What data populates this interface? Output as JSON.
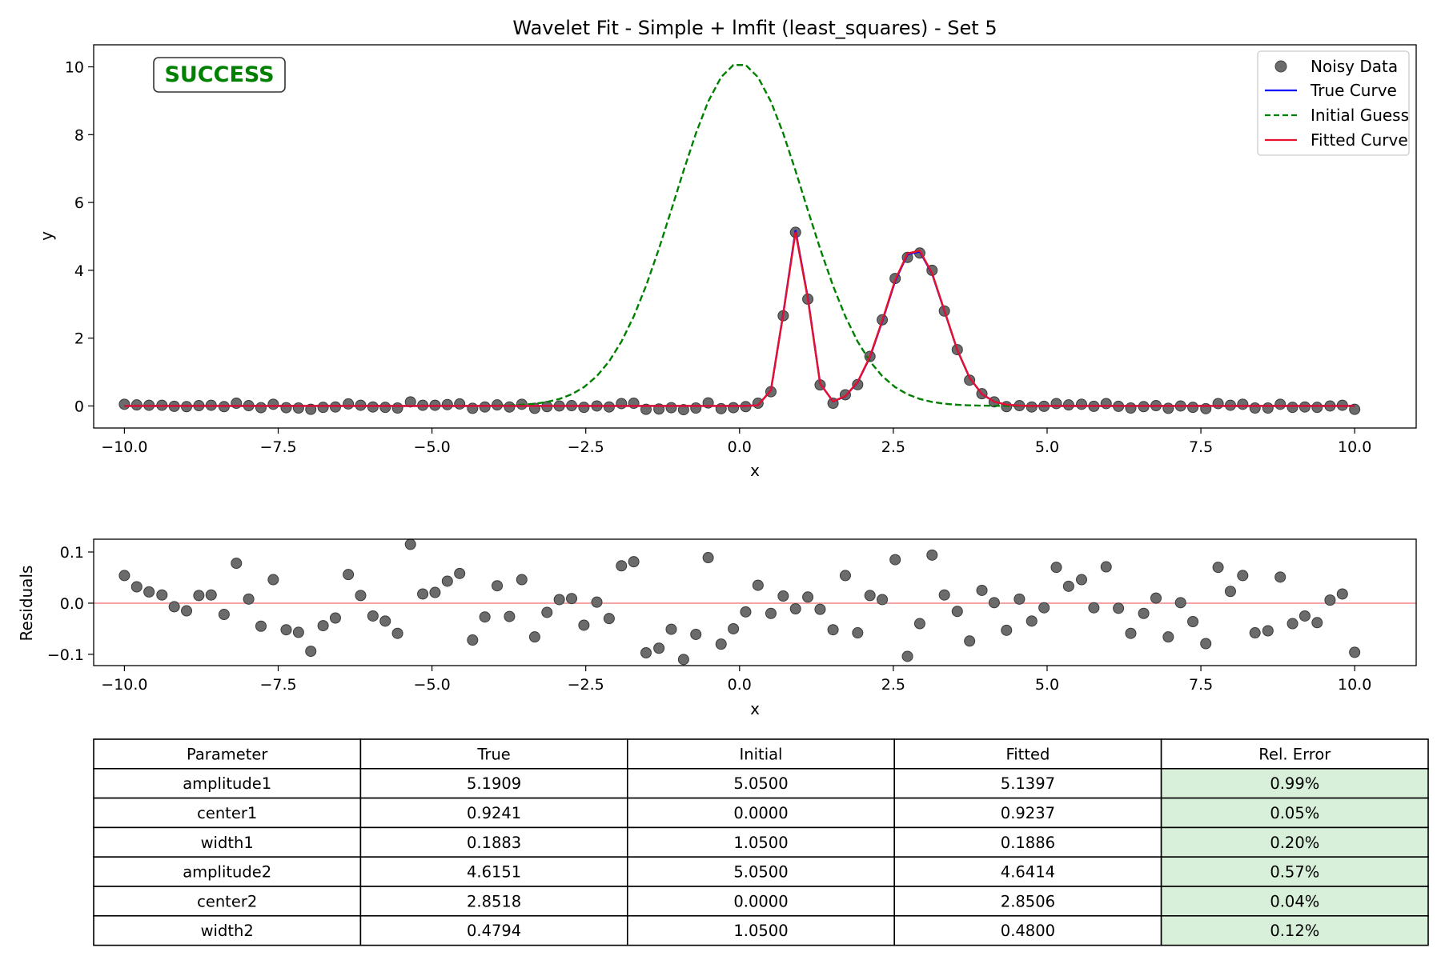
{
  "chart_data": [
    {
      "type": "line",
      "title": "Wavelet Fit - Simple + lmfit (least_squares) - Set 5",
      "xlabel": "x",
      "ylabel": "y",
      "xlim": [
        -10.5,
        11.0
      ],
      "ylim": [
        -0.65,
        10.65
      ],
      "xticks": [
        -10.0,
        -7.5,
        -5.0,
        -2.5,
        0.0,
        2.5,
        5.0,
        7.5,
        10.0
      ],
      "xtick_labels": [
        "−10.0",
        "−7.5",
        "−5.0",
        "−2.5",
        "0.0",
        "2.5",
        "5.0",
        "7.5",
        "10.0"
      ],
      "yticks": [
        0,
        2,
        4,
        6,
        8,
        10
      ],
      "ytick_labels": [
        "0",
        "2",
        "4",
        "6",
        "8",
        "10"
      ],
      "grid": false,
      "legend_position": "top-right",
      "status_badge": "SUCCESS",
      "status_color": "#008000",
      "noisy_data": {
        "name": "Noisy Data",
        "color": "#6b6b6b",
        "x": [
          -10.0,
          -9.8,
          -9.6,
          -9.39,
          -9.19,
          -8.99,
          -8.79,
          -8.59,
          -8.38,
          -8.18,
          -7.98,
          -7.78,
          -7.58,
          -7.37,
          -7.17,
          -6.97,
          -6.77,
          -6.57,
          -6.36,
          -6.16,
          -5.96,
          -5.76,
          -5.56,
          -5.35,
          -5.15,
          -4.95,
          -4.75,
          -4.55,
          -4.34,
          -4.14,
          -3.94,
          -3.74,
          -3.54,
          -3.33,
          -3.13,
          -2.93,
          -2.73,
          -2.53,
          -2.32,
          -2.12,
          -1.92,
          -1.72,
          -1.52,
          -1.31,
          -1.11,
          -0.91,
          -0.71,
          -0.51,
          -0.3,
          -0.1,
          0.1,
          0.3,
          0.51,
          0.71,
          0.91,
          1.11,
          1.31,
          1.52,
          1.72,
          1.92,
          2.12,
          2.32,
          2.53,
          2.73,
          2.93,
          3.13,
          3.33,
          3.54,
          3.74,
          3.94,
          4.14,
          4.34,
          4.55,
          4.75,
          4.95,
          5.15,
          5.35,
          5.56,
          5.76,
          5.96,
          6.16,
          6.36,
          6.57,
          6.77,
          6.97,
          7.17,
          7.37,
          7.58,
          7.78,
          7.98,
          8.18,
          8.38,
          8.59,
          8.79,
          8.99,
          9.19,
          9.39,
          9.6,
          9.8,
          10.0
        ],
        "y": [
          0.05,
          0.03,
          0.02,
          0.02,
          -0.01,
          -0.02,
          0.01,
          0.02,
          -0.02,
          0.08,
          0.01,
          -0.05,
          0.05,
          -0.05,
          -0.06,
          -0.1,
          -0.04,
          -0.03,
          0.06,
          0.02,
          -0.03,
          -0.04,
          -0.06,
          0.12,
          0.02,
          0.02,
          0.04,
          0.06,
          -0.07,
          -0.03,
          0.03,
          -0.03,
          0.05,
          -0.07,
          -0.02,
          0.0,
          0.01,
          -0.04,
          0.0,
          -0.03,
          0.07,
          0.08,
          -0.1,
          -0.09,
          -0.05,
          -0.11,
          -0.06,
          0.09,
          -0.08,
          -0.05,
          -0.02,
          0.08,
          0.42,
          2.66,
          5.12,
          3.15,
          0.62,
          0.08,
          0.33,
          0.63,
          1.46,
          2.54,
          3.76,
          4.38,
          4.51,
          4.0,
          2.8,
          1.66,
          0.76,
          0.36,
          0.12,
          -0.02,
          0.01,
          -0.03,
          -0.01,
          0.07,
          0.03,
          0.05,
          -0.01,
          0.07,
          -0.01,
          -0.06,
          -0.02,
          0.01,
          -0.07,
          0.0,
          -0.04,
          -0.08,
          0.07,
          0.02,
          0.05,
          -0.06,
          -0.06,
          0.05,
          -0.04,
          -0.03,
          -0.04,
          0.0,
          0.02,
          -0.1
        ]
      },
      "true_curve": {
        "name": "True Curve",
        "color": "#0000ff",
        "amplitude1": 5.1909,
        "center1": 0.9241,
        "width1": 0.1883,
        "amplitude2": 4.6151,
        "center2": 2.8518,
        "width2": 0.4794
      },
      "initial_guess": {
        "name": "Initial Guess",
        "color": "#008000",
        "amplitude1": 5.05,
        "center1": 0.0,
        "width1": 1.05,
        "amplitude2": 5.05,
        "center2": 0.0,
        "width2": 1.05
      },
      "fitted_curve": {
        "name": "Fitted Curve",
        "color": "#e8112d",
        "amplitude1": 5.1397,
        "center1": 0.9237,
        "width1": 0.1886,
        "amplitude2": 4.6414,
        "center2": 2.8506,
        "width2": 0.48
      }
    },
    {
      "type": "scatter",
      "xlabel": "x",
      "ylabel": "Residuals",
      "xlim": [
        -10.5,
        11.0
      ],
      "ylim": [
        -0.122,
        0.125
      ],
      "xticks": [
        -10.0,
        -7.5,
        -5.0,
        -2.5,
        0.0,
        2.5,
        5.0,
        7.5,
        10.0
      ],
      "xtick_labels": [
        "−10.0",
        "−7.5",
        "−5.0",
        "−2.5",
        "0.0",
        "2.5",
        "5.0",
        "7.5",
        "10.0"
      ],
      "yticks": [
        0.1,
        0.0,
        -0.1
      ],
      "ytick_labels": [
        "0.1",
        "0.0",
        "−0.1"
      ],
      "zero_line_color": "#f4a6a6",
      "point_color": "#6b6b6b",
      "residuals": [
        0.054,
        0.032,
        0.022,
        0.016,
        -0.007,
        -0.015,
        0.015,
        0.016,
        -0.022,
        0.078,
        0.008,
        -0.045,
        0.046,
        -0.052,
        -0.057,
        -0.094,
        -0.044,
        -0.029,
        0.056,
        0.015,
        -0.025,
        -0.035,
        -0.059,
        0.115,
        0.018,
        0.021,
        0.043,
        0.058,
        -0.072,
        -0.027,
        0.034,
        -0.026,
        0.046,
        -0.066,
        -0.018,
        0.007,
        0.009,
        -0.043,
        0.002,
        -0.03,
        0.073,
        0.081,
        -0.097,
        -0.088,
        -0.051,
        -0.11,
        -0.061,
        0.089,
        -0.08,
        -0.05,
        -0.017,
        0.035,
        -0.02,
        0.014,
        -0.011,
        0.012,
        -0.012,
        -0.052,
        0.054,
        -0.058,
        0.015,
        0.007,
        0.085,
        -0.104,
        -0.04,
        0.094,
        0.016,
        -0.016,
        -0.074,
        0.025,
        0.001,
        -0.053,
        0.008,
        -0.035,
        -0.009,
        0.07,
        0.033,
        0.046,
        -0.009,
        0.071,
        -0.01,
        -0.059,
        -0.02,
        0.01,
        -0.066,
        0.001,
        -0.036,
        -0.079,
        0.07,
        0.023,
        0.054,
        -0.058,
        -0.054,
        0.051,
        -0.04,
        -0.025,
        -0.038,
        0.006,
        0.018,
        -0.096
      ]
    },
    {
      "type": "table",
      "columns": [
        "Parameter",
        "True",
        "Initial",
        "Fitted",
        "Rel. Error"
      ],
      "rows": [
        [
          "amplitude1",
          "5.1909",
          "5.0500",
          "5.1397",
          "0.99%"
        ],
        [
          "center1",
          "0.9241",
          "0.0000",
          "0.9237",
          "0.05%"
        ],
        [
          "width1",
          "0.1883",
          "1.0500",
          "0.1886",
          "0.20%"
        ],
        [
          "amplitude2",
          "4.6151",
          "5.0500",
          "4.6414",
          "0.57%"
        ],
        [
          "center2",
          "2.8518",
          "0.0000",
          "2.8506",
          "0.04%"
        ],
        [
          "width2",
          "0.4794",
          "1.0500",
          "0.4800",
          "0.12%"
        ]
      ],
      "error_cell_color": "#d8f0da"
    }
  ]
}
